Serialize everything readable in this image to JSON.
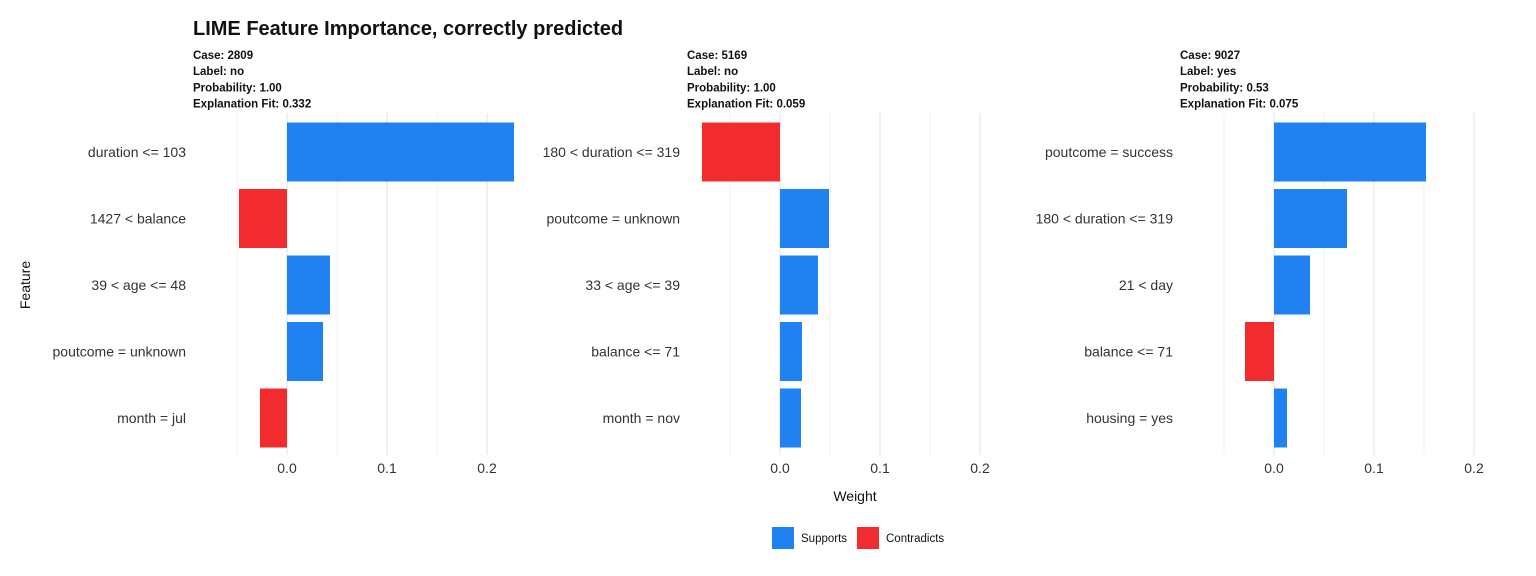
{
  "chart_data": {
    "type": "bar",
    "orientation": "horizontal",
    "title": "LIME Feature Importance, correctly predicted",
    "xlabel": "Weight",
    "ylabel": "Feature",
    "grid": true,
    "legend_position": "bottom",
    "legend": [
      {
        "key": "supports",
        "label": "Supports",
        "color": "#2081f0"
      },
      {
        "key": "contradicts",
        "label": "Contradicts",
        "color": "#f12b2e"
      }
    ],
    "panels": [
      {
        "subtitle_lines": [
          "Case: 2809",
          "Label: no",
          "Probability: 1.00",
          "Explanation Fit: 0.332"
        ],
        "xlim": [
          -0.05,
          0.23
        ],
        "ticks": [
          {
            "value": 0.0,
            "label": "0.0"
          },
          {
            "value": 0.1,
            "label": "0.1"
          },
          {
            "value": 0.2,
            "label": "0.2"
          }
        ],
        "features": [
          "duration <= 103",
          "1427 < balance",
          "39 < age <= 48",
          "poutcome = unknown",
          "month = jul"
        ],
        "values": [
          0.227,
          -0.048,
          0.043,
          0.036,
          -0.027
        ]
      },
      {
        "subtitle_lines": [
          "Case: 5169",
          "Label: no",
          "Probability: 1.00",
          "Explanation Fit: 0.059"
        ],
        "xlim": [
          -0.078,
          0.2
        ],
        "ticks": [
          {
            "value": 0.0,
            "label": "0.0"
          },
          {
            "value": 0.1,
            "label": "0.1"
          },
          {
            "value": 0.2,
            "label": "0.2"
          }
        ],
        "features": [
          "180 < duration <= 319",
          "poutcome = unknown",
          "33 < age <= 39",
          "balance <= 71",
          "month = nov"
        ],
        "values": [
          -0.078,
          0.049,
          0.038,
          0.022,
          0.021
        ]
      },
      {
        "subtitle_lines": [
          "Case: 9027",
          "Label: yes",
          "Probability: 0.53",
          "Explanation Fit: 0.075"
        ],
        "xlim": [
          -0.05,
          0.2
        ],
        "ticks": [
          {
            "value": 0.0,
            "label": "0.0"
          },
          {
            "value": 0.1,
            "label": "0.1"
          },
          {
            "value": 0.2,
            "label": "0.2"
          }
        ],
        "features": [
          "poutcome = success",
          "180 < duration <= 319",
          "21 < day",
          "balance <= 71",
          "housing = yes"
        ],
        "values": [
          0.152,
          0.073,
          0.036,
          -0.029,
          0.013
        ]
      }
    ]
  }
}
